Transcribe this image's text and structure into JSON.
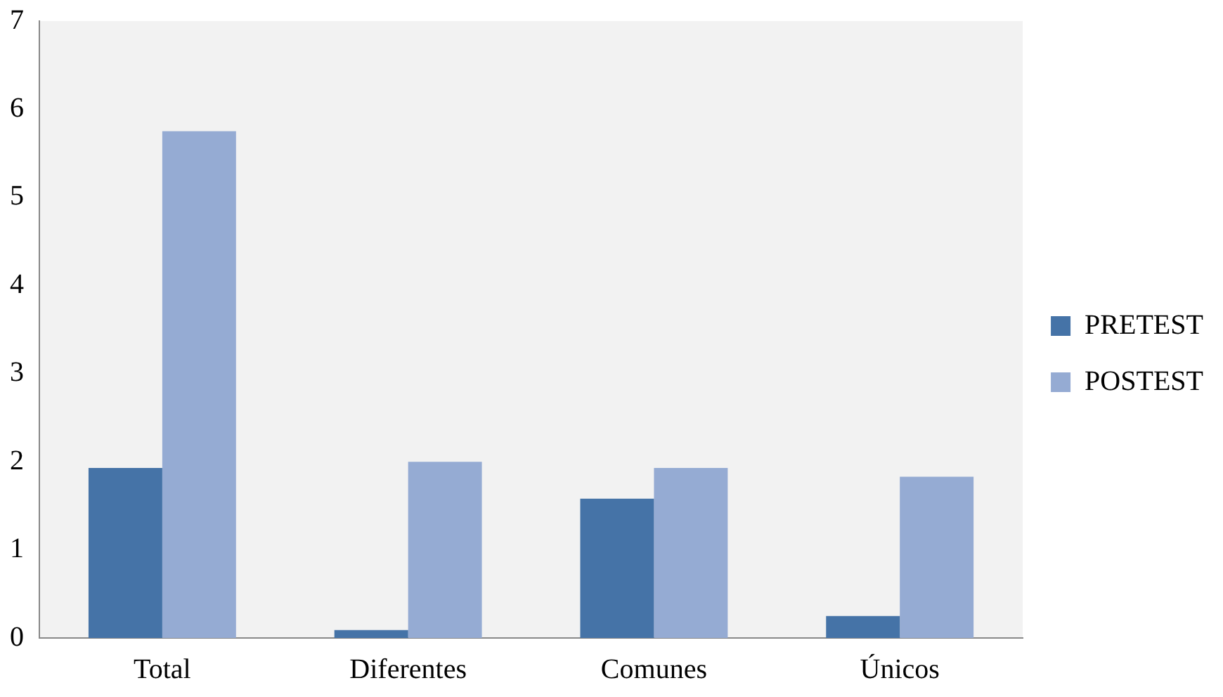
{
  "chart_data": {
    "type": "bar",
    "categories": [
      "Total",
      "Diferentes",
      "Comunes",
      "Únicos"
    ],
    "series": [
      {
        "name": "PRETEST",
        "color": "#4573a7",
        "values": [
          1.93,
          0.09,
          1.58,
          0.25
        ]
      },
      {
        "name": "POSTEST",
        "color": "#95abd3",
        "values": [
          5.75,
          2.0,
          1.93,
          1.83
        ]
      }
    ],
    "ylim": [
      0,
      7
    ],
    "yticks": [
      0,
      1,
      2,
      3,
      4,
      5,
      6,
      7
    ],
    "grid": false,
    "legend": "right"
  }
}
